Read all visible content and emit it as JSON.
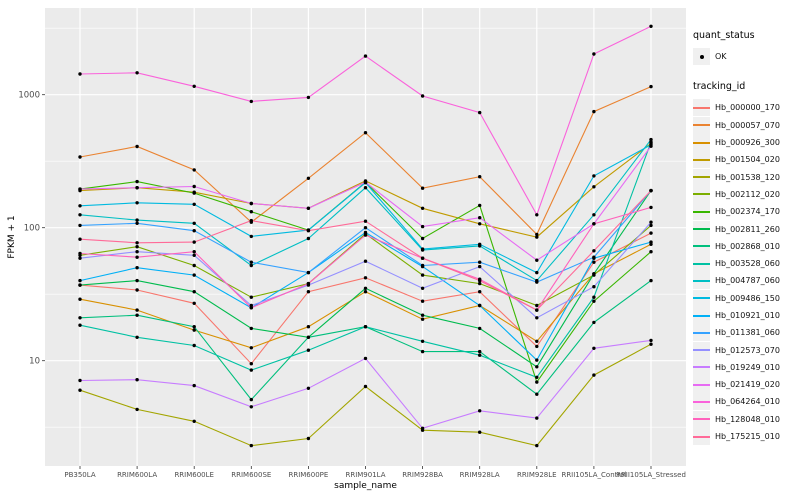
{
  "figure": {
    "background": "#FFFFFF",
    "panel_bg": "#EBEBEB",
    "grid_color": "#FFFFFF",
    "tick_color": "#333333",
    "tick_label_color": "#4D4D4D",
    "axis_title_color": "#000000",
    "point_color": "#000000",
    "legend_key_bg": "#F0F0F0"
  },
  "legend": {
    "quant_status": {
      "title": "quant_status",
      "items": [
        {
          "label": "OK",
          "marker": "point"
        }
      ]
    },
    "tracking_id": {
      "title": "tracking_id"
    }
  },
  "chart_data": {
    "type": "line",
    "title": "",
    "xlabel": "sample_name",
    "ylabel": "FPKM + 1",
    "x_scale": "categorical",
    "y_scale": "log10",
    "ylim": [
      1.6,
      4200
    ],
    "grid": true,
    "legend_position": "right",
    "y_major_ticks": [
      10,
      100,
      1000
    ],
    "y_major_tick_labels": [
      "10",
      "100",
      "1000"
    ],
    "y_minor_ticks": [
      3.1623,
      31.623,
      316.23,
      3162.3
    ],
    "categories": [
      "PB350LA",
      "RRIM600LA",
      "RRIM600LE",
      "RRIM600SE",
      "RRIM600PE",
      "RRIM901LA",
      "RRIM928BA",
      "RRIM928LA",
      "RRIM928LE",
      "RRII105LA_Control",
      "RRII105LA_Stressed"
    ],
    "series": [
      {
        "name": "Hb_000000_170",
        "color": "#F8766D",
        "values": [
          37,
          34,
          27,
          9.5,
          33,
          42,
          28,
          33,
          12.8,
          55,
          91
        ]
      },
      {
        "name": "Hb_000057_070",
        "color": "#EA8331",
        "values": [
          340,
          408,
          272,
          110,
          235,
          518,
          198,
          242,
          89,
          746,
          1150
        ]
      },
      {
        "name": "Hb_000926_300",
        "color": "#D89000",
        "values": [
          29,
          24,
          17,
          12.5,
          18,
          33,
          20.5,
          26,
          14,
          45,
          75
        ]
      },
      {
        "name": "Hb_001504_020",
        "color": "#C09B00",
        "values": [
          190,
          200,
          185,
          152,
          140,
          225,
          140,
          107,
          85,
          203,
          430
        ]
      },
      {
        "name": "Hb_001538_120",
        "color": "#A3A500",
        "values": [
          6.0,
          4.3,
          3.5,
          2.3,
          2.6,
          6.4,
          3.0,
          2.9,
          2.3,
          7.8,
          13.3
        ]
      },
      {
        "name": "Hb_002112_020",
        "color": "#7CAE00",
        "values": [
          62,
          72,
          52,
          30,
          38,
          90,
          44,
          38,
          26,
          44,
          104
        ]
      },
      {
        "name": "Hb_002374_170",
        "color": "#39B600",
        "values": [
          195,
          222,
          182,
          132,
          96,
          220,
          83,
          147,
          6.9,
          28,
          66
        ]
      },
      {
        "name": "Hb_002811_260",
        "color": "#00BB4E",
        "values": [
          37,
          40,
          33,
          17.5,
          15,
          35,
          22,
          17.5,
          9,
          45,
          190
        ]
      },
      {
        "name": "Hb_002868_010",
        "color": "#00BF7D",
        "values": [
          21,
          22,
          18,
          5.1,
          15,
          18,
          11.7,
          11.7,
          5.6,
          19.4,
          40
        ]
      },
      {
        "name": "Hb_003528_060",
        "color": "#00C1A3",
        "values": [
          18.5,
          15,
          13,
          8.5,
          12,
          18,
          14,
          11,
          7.5,
          30,
          440
        ]
      },
      {
        "name": "Hb_004787_060",
        "color": "#00BFC4",
        "values": [
          125,
          114,
          108,
          52,
          83,
          200,
          68,
          73,
          40,
          125,
          460
        ]
      },
      {
        "name": "Hb_009486_150",
        "color": "#00BAE0",
        "values": [
          146,
          154,
          150,
          86,
          96,
          218,
          69,
          75,
          46,
          245,
          420
        ]
      },
      {
        "name": "Hb_010921_010",
        "color": "#00B0F6",
        "values": [
          40,
          50,
          44,
          25,
          46,
          92,
          51,
          26,
          10.1,
          59,
          78
        ]
      },
      {
        "name": "Hb_011381_060",
        "color": "#35A2FF",
        "values": [
          104,
          108,
          95,
          55,
          46,
          100,
          52,
          55,
          39,
          60,
          190
        ]
      },
      {
        "name": "Hb_012573_070",
        "color": "#9590FF",
        "values": [
          59,
          66,
          62,
          26,
          37,
          56,
          35,
          51,
          21,
          36,
          110
        ]
      },
      {
        "name": "Hb_019249_010",
        "color": "#C77CFF",
        "values": [
          7.1,
          7.2,
          6.5,
          4.5,
          6.2,
          10.4,
          3.1,
          4.2,
          3.7,
          12.4,
          14.2
        ]
      },
      {
        "name": "Hb_021419_020",
        "color": "#E76BF3",
        "values": [
          195,
          200,
          204,
          152,
          140,
          220,
          102,
          119,
          57,
          107,
          410
        ]
      },
      {
        "name": "Hb_064264_010",
        "color": "#FA62DB",
        "values": [
          1430,
          1460,
          1156,
          890,
          955,
          1950,
          978,
          733,
          125,
          2024,
          3270
        ]
      },
      {
        "name": "Hb_128048_010",
        "color": "#FF62BC",
        "values": [
          64,
          60,
          66,
          25,
          38,
          88,
          59,
          41,
          24,
          107,
          142
        ]
      },
      {
        "name": "Hb_175215_010",
        "color": "#FF6A98",
        "values": [
          82,
          77,
          78,
          113,
          95,
          112,
          59,
          40,
          24,
          67,
          190
        ]
      }
    ]
  }
}
